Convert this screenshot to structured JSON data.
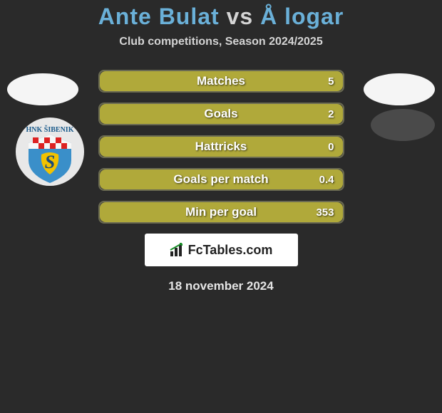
{
  "title_parts": {
    "p1": "Ante Bulat",
    "vs": " vs ",
    "p2": "Å logar"
  },
  "subtitle": "Club competitions, Season 2024/2025",
  "colors": {
    "bar_border": "#6b6b52",
    "bar_fill": "#b0a93a",
    "bar_bg": "#3a3a3a",
    "badge_blue": "#3a8fc9",
    "badge_yellow": "#f2c200",
    "badge_red": "#d22",
    "avatar_placeholder": "#f5f5f5",
    "right_badge_bg": "#4a4a4a"
  },
  "stats": [
    {
      "label": "Matches",
      "value": "5",
      "fill_pct": 100
    },
    {
      "label": "Goals",
      "value": "2",
      "fill_pct": 100
    },
    {
      "label": "Hattricks",
      "value": "0",
      "fill_pct": 100
    },
    {
      "label": "Goals per match",
      "value": "0.4",
      "fill_pct": 100
    },
    {
      "label": "Min per goal",
      "value": "353",
      "fill_pct": 100
    }
  ],
  "logo_text": "FcTables.com",
  "date_text": "18 november 2024"
}
